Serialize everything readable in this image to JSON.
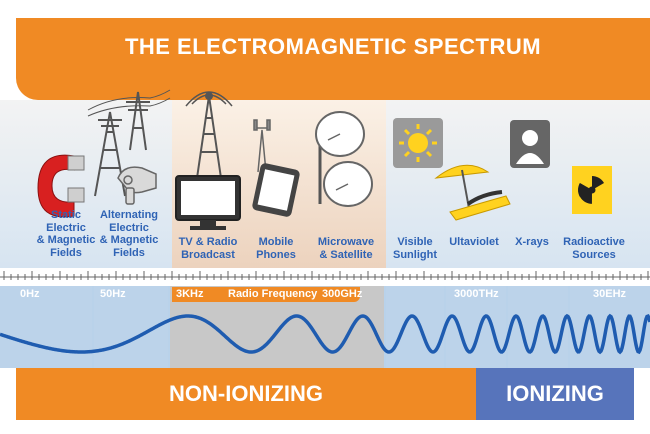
{
  "title": "THE ELECTROMAGNETIC SPECTRUM",
  "categories": [
    {
      "label": "Static\nElectric\n& Magnetic\nFields",
      "icon": "magnet-icon"
    },
    {
      "label": "Alternating\nElectric\n& Magnetic\nFields",
      "icon": "power-lines-icon"
    },
    {
      "label": "TV & Radio\nBroadcast",
      "icon": "tv-radio-tower-icon"
    },
    {
      "label": "Mobile\nPhones",
      "icon": "mobile-phone-icon"
    },
    {
      "label": "Microwave\n& Satellite",
      "icon": "satellite-dish-icon"
    },
    {
      "label": "Visible\nSunlight",
      "icon": "sun-icon"
    },
    {
      "label": "Ultaviolet",
      "icon": "sunbather-icon"
    },
    {
      "label": "X-rays",
      "icon": "x-ray-icon"
    },
    {
      "label": "Radioactive\nSources",
      "icon": "radiation-icon"
    }
  ],
  "frequencies": {
    "f0": "0Hz",
    "f1": "50Hz",
    "f2": "3KHz",
    "f3": "300GHz",
    "f4": "3000THz",
    "f5": "30EHz"
  },
  "radio_frequency_label": "Radio Frequency",
  "bottom": {
    "non_ionizing": "NON-IONIZING",
    "ionizing": "IONIZING"
  },
  "colors": {
    "orange": "#f08a24",
    "blue_label": "#2f63b5",
    "ionizing_blue": "#5774bb",
    "wave": "#1f5cb0"
  }
}
